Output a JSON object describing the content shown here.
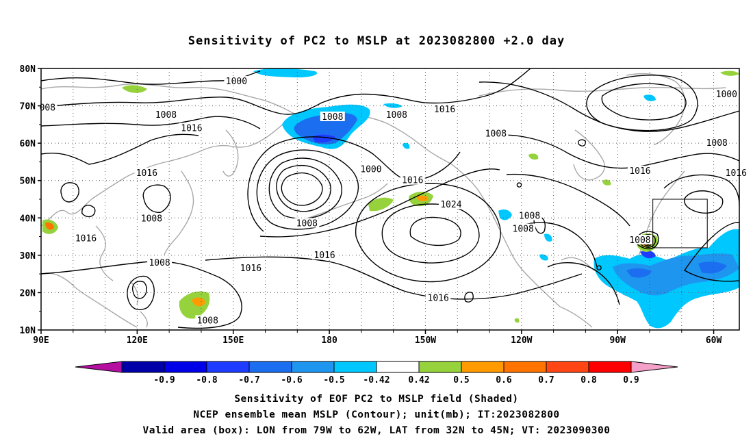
{
  "title": "Sensitivity of PC2 to MSLP at 2023082800 +2.0 day",
  "captions": {
    "line1": "Sensitivity of EOF PC2 to MSLP field (Shaded)",
    "line2": "NCEP ensemble mean MSLP (Contour); unit(mb); IT:2023082800",
    "line3": "Valid area (box): LON from 79W to 62W, LAT from 32N to 45N; VT: 2023090300"
  },
  "map": {
    "lon_range": [
      90,
      308
    ],
    "lat_range": [
      10,
      80
    ],
    "lat_ticks": [
      {
        "lat": 80,
        "label": "80N"
      },
      {
        "lat": 70,
        "label": "70N"
      },
      {
        "lat": 60,
        "label": "60N"
      },
      {
        "lat": 50,
        "label": "50N"
      },
      {
        "lat": 40,
        "label": "40N"
      },
      {
        "lat": 30,
        "label": "30N"
      },
      {
        "lat": 20,
        "label": "20N"
      },
      {
        "lat": 10,
        "label": "10N"
      }
    ],
    "lon_ticks": [
      {
        "lon": 90,
        "label": "90E"
      },
      {
        "lon": 120,
        "label": "120E"
      },
      {
        "lon": 150,
        "label": "150E"
      },
      {
        "lon": 180,
        "label": "180"
      },
      {
        "lon": 210,
        "label": "150W"
      },
      {
        "lon": 240,
        "label": "120W"
      },
      {
        "lon": 270,
        "label": "90W"
      },
      {
        "lon": 300,
        "label": "60W"
      }
    ],
    "valid_box": {
      "lon_min": 281,
      "lon_max": 298,
      "lat_min": 32,
      "lat_max": 45
    },
    "contour_labels": [
      {
        "text": "1000",
        "lon": 151,
        "lat": 76.5
      },
      {
        "text": "1000",
        "lon": 304,
        "lat": 73
      },
      {
        "text": "1000",
        "lon": 193,
        "lat": 53
      },
      {
        "text": "008",
        "lon": 92,
        "lat": 69.5
      },
      {
        "text": "1008",
        "lon": 129,
        "lat": 67.5
      },
      {
        "text": "1008",
        "lon": 181,
        "lat": 67
      },
      {
        "text": "1008",
        "lon": 201,
        "lat": 67.5
      },
      {
        "text": "1008",
        "lon": 232,
        "lat": 62.5
      },
      {
        "text": "1008",
        "lon": 301,
        "lat": 60
      },
      {
        "text": "1008",
        "lon": 124.5,
        "lat": 39.8
      },
      {
        "text": "1008",
        "lon": 173,
        "lat": 38.5
      },
      {
        "text": "1008",
        "lon": 242.5,
        "lat": 40.5
      },
      {
        "text": "1008",
        "lon": 240.5,
        "lat": 37
      },
      {
        "text": "1008",
        "lon": 127,
        "lat": 28
      },
      {
        "text": "1008",
        "lon": 142,
        "lat": 12.5
      },
      {
        "text": "1008",
        "lon": 277,
        "lat": 34
      },
      {
        "text": "1016",
        "lon": 216,
        "lat": 69
      },
      {
        "text": "1016",
        "lon": 137,
        "lat": 64
      },
      {
        "text": "1016",
        "lon": 123,
        "lat": 52
      },
      {
        "text": "1016",
        "lon": 277,
        "lat": 52.5
      },
      {
        "text": "1016",
        "lon": 307,
        "lat": 52
      },
      {
        "text": "1016",
        "lon": 206,
        "lat": 50
      },
      {
        "text": "1016",
        "lon": 104,
        "lat": 34.5
      },
      {
        "text": "1016",
        "lon": 178.5,
        "lat": 30
      },
      {
        "text": "1016",
        "lon": 155.5,
        "lat": 26.5
      },
      {
        "text": "1016",
        "lon": 214,
        "lat": 18.5
      },
      {
        "text": "1024",
        "lon": 218,
        "lat": 43.5
      }
    ]
  },
  "colorbar": {
    "colors": [
      "#b40fa0",
      "#0000a8",
      "#0000e8",
      "#1e3cff",
      "#1c6ef0",
      "#1e96f0",
      "#00c8ff",
      "#ffffff",
      "#96d23c",
      "#ff9b00",
      "#ff7300",
      "#ff4614",
      "#ff0000",
      "#f5a0c8"
    ],
    "labels": [
      "-0.9",
      "-0.8",
      "-0.7",
      "-0.6",
      "-0.5",
      "-0.42",
      "0.42",
      "0.5",
      "0.6",
      "0.7",
      "0.8",
      "0.9"
    ]
  },
  "legend": {
    "land_color": "#a0a0a0",
    "contour_color": "#000000"
  }
}
